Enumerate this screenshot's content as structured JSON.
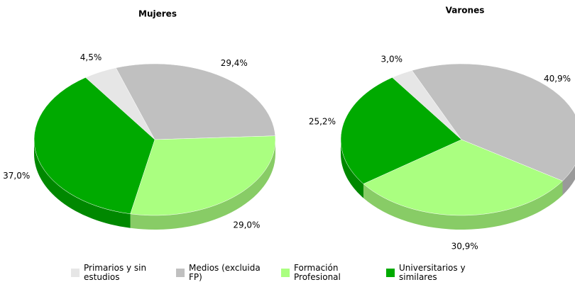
{
  "chart_data": [
    {
      "type": "pie",
      "title": "Mujeres",
      "categories": [
        "Primarios y sin estudios",
        "Medios (excluida FP)",
        "Formación Profesional",
        "Universitarios y similares"
      ],
      "values": [
        4.5,
        29.4,
        29.0,
        37.0
      ],
      "value_labels": [
        "4,5%",
        "29,4%",
        "29,0%",
        "37,0%"
      ],
      "colors": [
        "#e6e6e6",
        "#c0c0c0",
        "#aaff80",
        "#00aa00"
      ]
    },
    {
      "type": "pie",
      "title": "Varones",
      "categories": [
        "Primarios y sin estudios",
        "Medios (excluida FP)",
        "Formación Profesional",
        "Universitarios y similares"
      ],
      "values": [
        3.0,
        40.9,
        30.9,
        25.2
      ],
      "value_labels": [
        "3,0%",
        "40,9%",
        "30,9%",
        "25,2%"
      ],
      "colors": [
        "#e6e6e6",
        "#c0c0c0",
        "#aaff80",
        "#00aa00"
      ]
    }
  ]
}
